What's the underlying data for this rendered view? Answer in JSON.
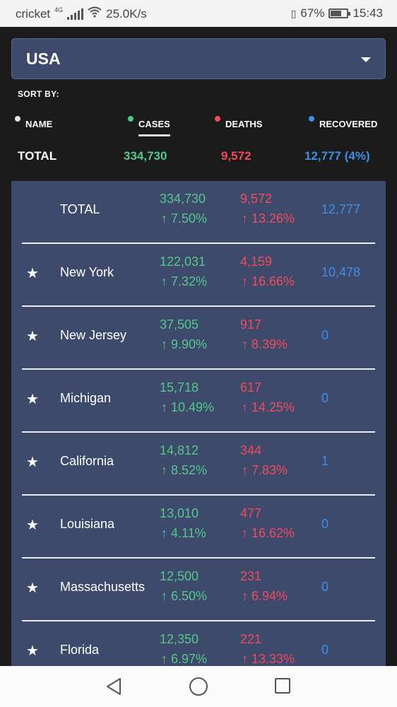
{
  "status_bar": {
    "carrier": "cricket",
    "network": "4G",
    "speed": "25.0K/s",
    "battery": "67%",
    "battery_level": 0.67,
    "time": "15:43"
  },
  "country_select": {
    "value": "USA"
  },
  "sort": {
    "label": "SORT BY:",
    "options": [
      {
        "label": "NAME",
        "dot_color": "#e6e6ee"
      },
      {
        "label": "CASES",
        "dot_color": "#54c78a",
        "active": true
      },
      {
        "label": "DEATHS",
        "dot_color": "#f04b5d"
      },
      {
        "label": "RECOVERED",
        "dot_color": "#3d8fe6"
      }
    ]
  },
  "totals": {
    "label": "TOTAL",
    "cases": "334,730",
    "deaths": "9,572",
    "recovered": "12,777 (4%)"
  },
  "colors": {
    "cases": "#54c78a",
    "deaths": "#f04b5d",
    "recovered": "#3d8fe6",
    "panel": "#3d4a6b"
  },
  "rows": [
    {
      "starred": false,
      "name": "TOTAL",
      "cases": "334,730",
      "cases_change": "↑ 7.50%",
      "deaths": "9,572",
      "deaths_change": "↑ 13.26%",
      "recovered": "12,777"
    },
    {
      "starred": true,
      "name": "New York",
      "cases": "122,031",
      "cases_change": "↑ 7.32%",
      "deaths": "4,159",
      "deaths_change": "↑ 16.66%",
      "recovered": "10,478"
    },
    {
      "starred": true,
      "name": "New Jersey",
      "cases": "37,505",
      "cases_change": "↑ 9.90%",
      "deaths": "917",
      "deaths_change": "↑ 8.39%",
      "recovered": "0"
    },
    {
      "starred": true,
      "name": "Michigan",
      "cases": "15,718",
      "cases_change": "↑ 10.49%",
      "deaths": "617",
      "deaths_change": "↑ 14.25%",
      "recovered": "0"
    },
    {
      "starred": true,
      "name": "California",
      "cases": "14,812",
      "cases_change": "↑ 8.52%",
      "deaths": "344",
      "deaths_change": "↑ 7.83%",
      "recovered": "1"
    },
    {
      "starred": true,
      "name": "Louisiana",
      "cases": "13,010",
      "cases_change": "↑ 4.11%",
      "deaths": "477",
      "deaths_change": "↑ 16.62%",
      "recovered": "0"
    },
    {
      "starred": true,
      "name": "Massachusetts",
      "cases": "12,500",
      "cases_change": "↑ 6.50%",
      "deaths": "231",
      "deaths_change": "↑ 6.94%",
      "recovered": "0"
    },
    {
      "starred": true,
      "name": "Florida",
      "cases": "12,350",
      "cases_change": "↑ 6.97%",
      "deaths": "221",
      "deaths_change": "↑ 13.33%",
      "recovered": "0"
    }
  ],
  "icons": {
    "star": "star-icon",
    "back": "back-triangle-icon",
    "home": "home-circle-icon",
    "recent": "recent-square-icon"
  }
}
